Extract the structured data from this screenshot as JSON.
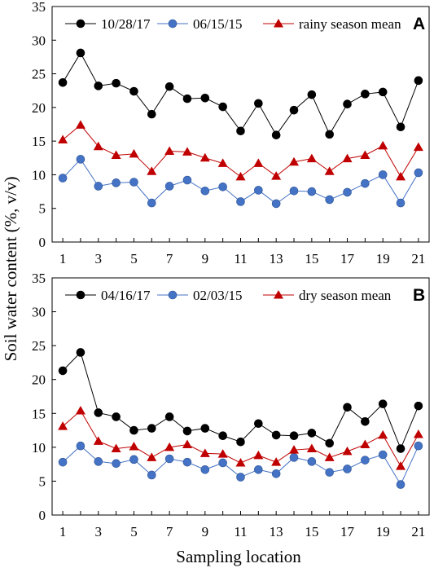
{
  "figure": {
    "ylabel": "Soil water content (%, v/v)",
    "xlabel": "Sampling location"
  },
  "chart_data": [
    {
      "type": "line",
      "panel_label": "A",
      "x": [
        1,
        2,
        3,
        4,
        5,
        6,
        7,
        8,
        9,
        10,
        11,
        12,
        13,
        14,
        15,
        16,
        17,
        18,
        19,
        20,
        21
      ],
      "x_tick_labels": [
        "1",
        "3",
        "5",
        "7",
        "9",
        "11",
        "13",
        "15",
        "17",
        "19",
        "21"
      ],
      "ylim": [
        0,
        35
      ],
      "y_tick_labels": [
        "0",
        "5",
        "10",
        "15",
        "20",
        "25",
        "30",
        "35"
      ],
      "legend_position": "top",
      "series": [
        {
          "name": "10/28/17",
          "color": "#000000",
          "marker": "circle",
          "values": [
            23.7,
            28.1,
            23.2,
            23.6,
            22.4,
            19.0,
            23.1,
            21.3,
            21.4,
            20.1,
            16.5,
            20.6,
            15.9,
            19.6,
            21.9,
            16.0,
            20.5,
            22.0,
            22.3,
            17.1,
            24.0
          ]
        },
        {
          "name": "06/15/15",
          "color": "#4472C4",
          "marker": "circle",
          "values": [
            9.5,
            12.3,
            8.3,
            8.8,
            8.9,
            5.8,
            8.3,
            9.2,
            7.6,
            8.2,
            6.0,
            7.7,
            5.7,
            7.6,
            7.5,
            6.3,
            7.4,
            8.7,
            10.0,
            5.8,
            10.3
          ]
        },
        {
          "name": "rainy season mean",
          "color": "#C00000",
          "marker": "triangle",
          "values": [
            15.2,
            17.4,
            14.2,
            12.9,
            13.1,
            10.5,
            13.5,
            13.4,
            12.5,
            11.7,
            9.7,
            11.7,
            9.8,
            11.9,
            12.4,
            10.5,
            12.4,
            12.9,
            14.3,
            9.7,
            14.1
          ]
        }
      ]
    },
    {
      "type": "line",
      "panel_label": "B",
      "x": [
        1,
        2,
        3,
        4,
        5,
        6,
        7,
        8,
        9,
        10,
        11,
        12,
        13,
        14,
        15,
        16,
        17,
        18,
        19,
        20,
        21
      ],
      "x_tick_labels": [
        "1",
        "3",
        "5",
        "7",
        "9",
        "11",
        "13",
        "15",
        "17",
        "19",
        "21"
      ],
      "ylim": [
        0,
        35
      ],
      "y_tick_labels": [
        "0",
        "5",
        "10",
        "15",
        "20",
        "25",
        "30",
        "35"
      ],
      "legend_position": "top",
      "series": [
        {
          "name": "04/16/17",
          "color": "#000000",
          "marker": "circle",
          "values": [
            21.3,
            24.0,
            15.1,
            14.5,
            12.5,
            12.8,
            14.5,
            12.4,
            12.8,
            11.7,
            10.8,
            13.5,
            11.8,
            11.7,
            12.1,
            10.6,
            15.9,
            13.8,
            16.4,
            9.8,
            16.1
          ]
        },
        {
          "name": "02/03/15",
          "color": "#4472C4",
          "marker": "circle",
          "values": [
            7.8,
            10.2,
            7.9,
            7.6,
            8.2,
            5.9,
            8.3,
            7.8,
            6.7,
            7.7,
            5.6,
            6.7,
            6.1,
            8.5,
            7.9,
            6.3,
            6.8,
            8.1,
            8.9,
            4.5,
            10.2
          ]
        },
        {
          "name": "dry season mean",
          "color": "#C00000",
          "marker": "triangle",
          "values": [
            13.1,
            15.4,
            10.9,
            9.8,
            10.1,
            8.5,
            10.0,
            10.4,
            9.1,
            9.0,
            7.7,
            8.8,
            7.8,
            9.6,
            9.8,
            8.5,
            9.4,
            10.4,
            11.8,
            7.2,
            11.9
          ]
        }
      ]
    }
  ]
}
